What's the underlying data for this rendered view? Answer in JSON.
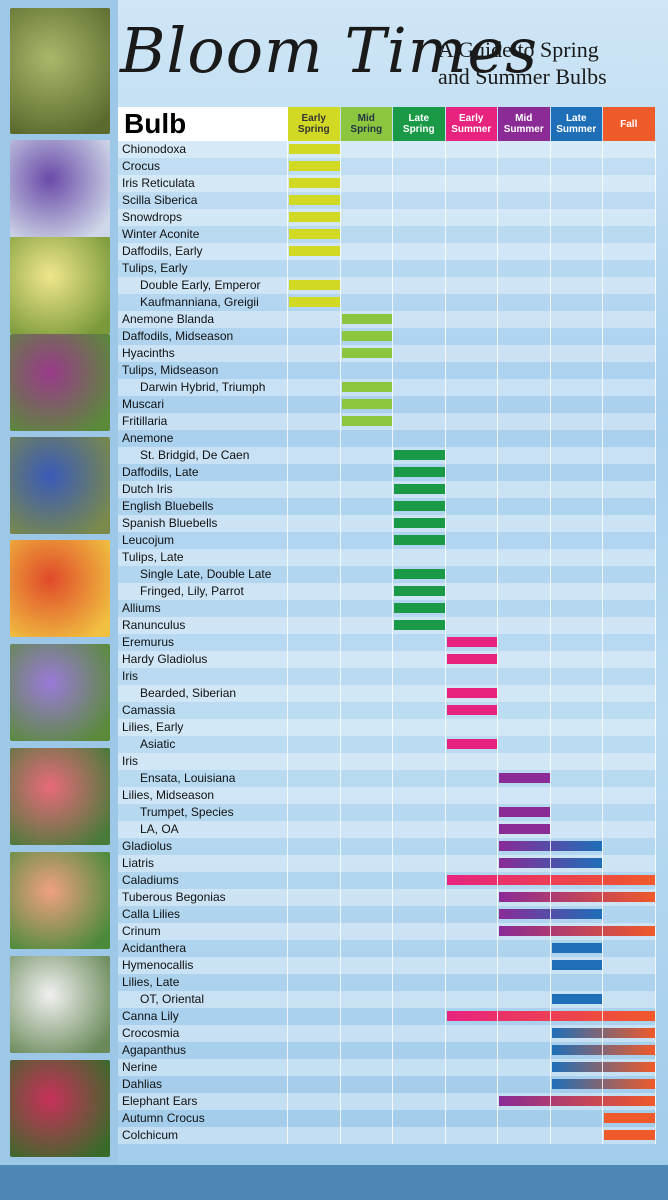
{
  "title": "Bloom Times",
  "subtitle_line1": "A Guide to Spring",
  "subtitle_line2": "and Summer Bulbs",
  "chart_data": {
    "type": "table",
    "row_header": "Bulb",
    "columns": [
      {
        "label": "Early\nSpring",
        "color": "#d2d925"
      },
      {
        "label": "Mid\nSpring",
        "color": "#8cc63f"
      },
      {
        "label": "Late\nSpring",
        "color": "#1a9a47"
      },
      {
        "label": "Early\nSummer",
        "color": "#e8237f"
      },
      {
        "label": "Mid\nSummer",
        "color": "#8a2b96"
      },
      {
        "label": "Late\nSummer",
        "color": "#1e6fb8"
      },
      {
        "label": "Fall",
        "color": "#ef5a2a"
      }
    ],
    "rows": [
      {
        "name": "Chionodoxa",
        "indent": 0,
        "start": 0,
        "end": 0
      },
      {
        "name": "Crocus",
        "indent": 0,
        "start": 0,
        "end": 0
      },
      {
        "name": "Iris Reticulata",
        "indent": 0,
        "start": 0,
        "end": 0
      },
      {
        "name": "Scilla Siberica",
        "indent": 0,
        "start": 0,
        "end": 0
      },
      {
        "name": "Snowdrops",
        "indent": 0,
        "start": 0,
        "end": 0
      },
      {
        "name": "Winter Aconite",
        "indent": 0,
        "start": 0,
        "end": 0
      },
      {
        "name": "Daffodils, Early",
        "indent": 0,
        "start": 0,
        "end": 0
      },
      {
        "name": "Tulips, Early",
        "indent": 0,
        "start": null,
        "end": null
      },
      {
        "name": "Double Early, Emperor",
        "indent": 1,
        "start": 0,
        "end": 0
      },
      {
        "name": "Kaufmanniana, Greigii",
        "indent": 1,
        "start": 0,
        "end": 0
      },
      {
        "name": "Anemone Blanda",
        "indent": 0,
        "start": 1,
        "end": 1
      },
      {
        "name": "Daffodils, Midseason",
        "indent": 0,
        "start": 1,
        "end": 1
      },
      {
        "name": "Hyacinths",
        "indent": 0,
        "start": 1,
        "end": 1
      },
      {
        "name": "Tulips, Midseason",
        "indent": 0,
        "start": null,
        "end": null
      },
      {
        "name": "Darwin Hybrid, Triumph",
        "indent": 1,
        "start": 1,
        "end": 1
      },
      {
        "name": "Muscari",
        "indent": 0,
        "start": 1,
        "end": 1
      },
      {
        "name": "Fritillaria",
        "indent": 0,
        "start": 1,
        "end": 1
      },
      {
        "name": "Anemone",
        "indent": 0,
        "start": null,
        "end": null
      },
      {
        "name": "St. Bridgid, De Caen",
        "indent": 1,
        "start": 2,
        "end": 2
      },
      {
        "name": "Daffodils, Late",
        "indent": 0,
        "start": 2,
        "end": 2
      },
      {
        "name": "Dutch Iris",
        "indent": 0,
        "start": 2,
        "end": 2
      },
      {
        "name": "English Bluebells",
        "indent": 0,
        "start": 2,
        "end": 2
      },
      {
        "name": "Spanish Bluebells",
        "indent": 0,
        "start": 2,
        "end": 2
      },
      {
        "name": "Leucojum",
        "indent": 0,
        "start": 2,
        "end": 2
      },
      {
        "name": "Tulips, Late",
        "indent": 0,
        "start": null,
        "end": null
      },
      {
        "name": "Single Late, Double Late",
        "indent": 1,
        "start": 2,
        "end": 2
      },
      {
        "name": "Fringed, Lily, Parrot",
        "indent": 1,
        "start": 2,
        "end": 2
      },
      {
        "name": "Alliums",
        "indent": 0,
        "start": 2,
        "end": 2
      },
      {
        "name": "Ranunculus",
        "indent": 0,
        "start": 2,
        "end": 2
      },
      {
        "name": "Eremurus",
        "indent": 0,
        "start": 3,
        "end": 3
      },
      {
        "name": "Hardy Gladiolus",
        "indent": 0,
        "start": 3,
        "end": 3
      },
      {
        "name": "Iris",
        "indent": 0,
        "start": null,
        "end": null
      },
      {
        "name": "Bearded, Siberian",
        "indent": 1,
        "start": 3,
        "end": 3
      },
      {
        "name": "Camassia",
        "indent": 0,
        "start": 3,
        "end": 3
      },
      {
        "name": "Lilies, Early",
        "indent": 0,
        "start": null,
        "end": null
      },
      {
        "name": "Asiatic",
        "indent": 1,
        "start": 3,
        "end": 3
      },
      {
        "name": "Iris",
        "indent": 0,
        "start": null,
        "end": null
      },
      {
        "name": "Ensata, Louisiana",
        "indent": 1,
        "start": 4,
        "end": 4
      },
      {
        "name": "Lilies, Midseason",
        "indent": 0,
        "start": null,
        "end": null
      },
      {
        "name": "Trumpet, Species",
        "indent": 1,
        "start": 4,
        "end": 4
      },
      {
        "name": "LA, OA",
        "indent": 1,
        "start": 4,
        "end": 4
      },
      {
        "name": "Gladiolus",
        "indent": 0,
        "start": 4,
        "end": 5
      },
      {
        "name": "Liatris",
        "indent": 0,
        "start": 4,
        "end": 5
      },
      {
        "name": "Caladiums",
        "indent": 0,
        "start": 3,
        "end": 6
      },
      {
        "name": "Tuberous Begonias",
        "indent": 0,
        "start": 4,
        "end": 6
      },
      {
        "name": "Calla Lilies",
        "indent": 0,
        "start": 4,
        "end": 5
      },
      {
        "name": "Crinum",
        "indent": 0,
        "start": 4,
        "end": 6
      },
      {
        "name": "Acidanthera",
        "indent": 0,
        "start": 5,
        "end": 5
      },
      {
        "name": "Hymenocallis",
        "indent": 0,
        "start": 5,
        "end": 5
      },
      {
        "name": "Lilies, Late",
        "indent": 0,
        "start": null,
        "end": null
      },
      {
        "name": "OT, Oriental",
        "indent": 1,
        "start": 5,
        "end": 5
      },
      {
        "name": "Canna Lily",
        "indent": 0,
        "start": 3,
        "end": 6
      },
      {
        "name": "Crocosmia",
        "indent": 0,
        "start": 5,
        "end": 6
      },
      {
        "name": "Agapanthus",
        "indent": 0,
        "start": 5,
        "end": 6
      },
      {
        "name": "Nerine",
        "indent": 0,
        "start": 5,
        "end": 6
      },
      {
        "name": "Dahlias",
        "indent": 0,
        "start": 5,
        "end": 6
      },
      {
        "name": "Elephant Ears",
        "indent": 0,
        "start": 4,
        "end": 6
      },
      {
        "name": "Autumn Crocus",
        "indent": 0,
        "start": 6,
        "end": 6
      },
      {
        "name": "Colchicum",
        "indent": 0,
        "start": 6,
        "end": 6
      }
    ]
  }
}
